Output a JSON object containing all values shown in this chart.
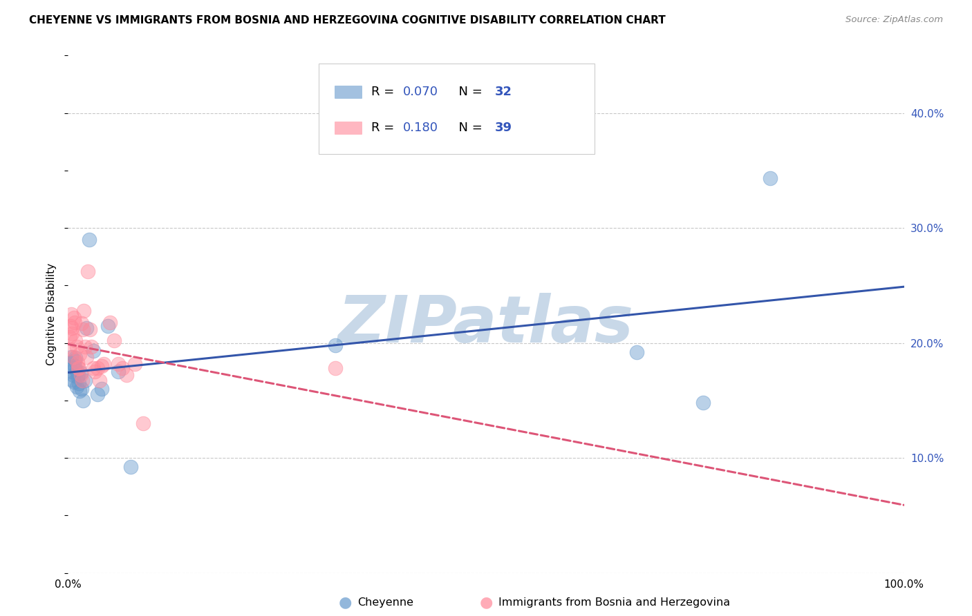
{
  "title": "CHEYENNE VS IMMIGRANTS FROM BOSNIA AND HERZEGOVINA COGNITIVE DISABILITY CORRELATION CHART",
  "source": "Source: ZipAtlas.com",
  "ylabel": "Cognitive Disability",
  "xlim": [
    0,
    1.0
  ],
  "ylim": [
    0.0,
    0.45
  ],
  "xticks": [
    0.0,
    0.2,
    0.4,
    0.6,
    0.8,
    1.0
  ],
  "xticklabels": [
    "0.0%",
    "",
    "",
    "",
    "",
    "100.0%"
  ],
  "yticks": [
    0.0,
    0.1,
    0.2,
    0.3,
    0.4
  ],
  "yticklabels": [
    "",
    "10.0%",
    "20.0%",
    "30.0%",
    "40.0%"
  ],
  "grid_color": "#c8c8c8",
  "cheyenne_color": "#6699cc",
  "bosnia_color": "#ff8899",
  "cheyenne_line_color": "#3355aa",
  "bosnia_line_color": "#dd5577",
  "cheyenne_R": 0.07,
  "cheyenne_N": 32,
  "bosnia_R": 0.18,
  "bosnia_N": 39,
  "cheyenne_x": [
    0.003,
    0.004,
    0.005,
    0.005,
    0.006,
    0.007,
    0.007,
    0.008,
    0.008,
    0.009,
    0.01,
    0.01,
    0.011,
    0.012,
    0.013,
    0.014,
    0.015,
    0.016,
    0.018,
    0.02,
    0.022,
    0.025,
    0.03,
    0.035,
    0.04,
    0.048,
    0.06,
    0.075,
    0.32,
    0.68,
    0.76,
    0.84
  ],
  "cheyenne_y": [
    0.183,
    0.188,
    0.175,
    0.168,
    0.172,
    0.166,
    0.178,
    0.18,
    0.185,
    0.187,
    0.176,
    0.162,
    0.17,
    0.172,
    0.165,
    0.158,
    0.174,
    0.16,
    0.15,
    0.167,
    0.213,
    0.29,
    0.193,
    0.155,
    0.16,
    0.215,
    0.175,
    0.092,
    0.198,
    0.192,
    0.148,
    0.343
  ],
  "bosnia_x": [
    0.001,
    0.002,
    0.003,
    0.004,
    0.005,
    0.005,
    0.006,
    0.007,
    0.008,
    0.009,
    0.01,
    0.011,
    0.012,
    0.013,
    0.014,
    0.015,
    0.016,
    0.017,
    0.018,
    0.019,
    0.02,
    0.022,
    0.024,
    0.026,
    0.028,
    0.03,
    0.032,
    0.035,
    0.038,
    0.04,
    0.043,
    0.05,
    0.055,
    0.06,
    0.065,
    0.07,
    0.08,
    0.09,
    0.32
  ],
  "bosnia_y": [
    0.195,
    0.205,
    0.215,
    0.225,
    0.213,
    0.208,
    0.188,
    0.222,
    0.218,
    0.202,
    0.197,
    0.183,
    0.178,
    0.178,
    0.19,
    0.172,
    0.217,
    0.167,
    0.212,
    0.228,
    0.197,
    0.188,
    0.262,
    0.212,
    0.197,
    0.178,
    0.175,
    0.178,
    0.167,
    0.18,
    0.182,
    0.218,
    0.202,
    0.182,
    0.178,
    0.172,
    0.182,
    0.13,
    0.178
  ],
  "watermark": "ZIPatlas",
  "watermark_color": "#c8d8e8",
  "bg_color": "#ffffff",
  "value_color": "#3355bb"
}
